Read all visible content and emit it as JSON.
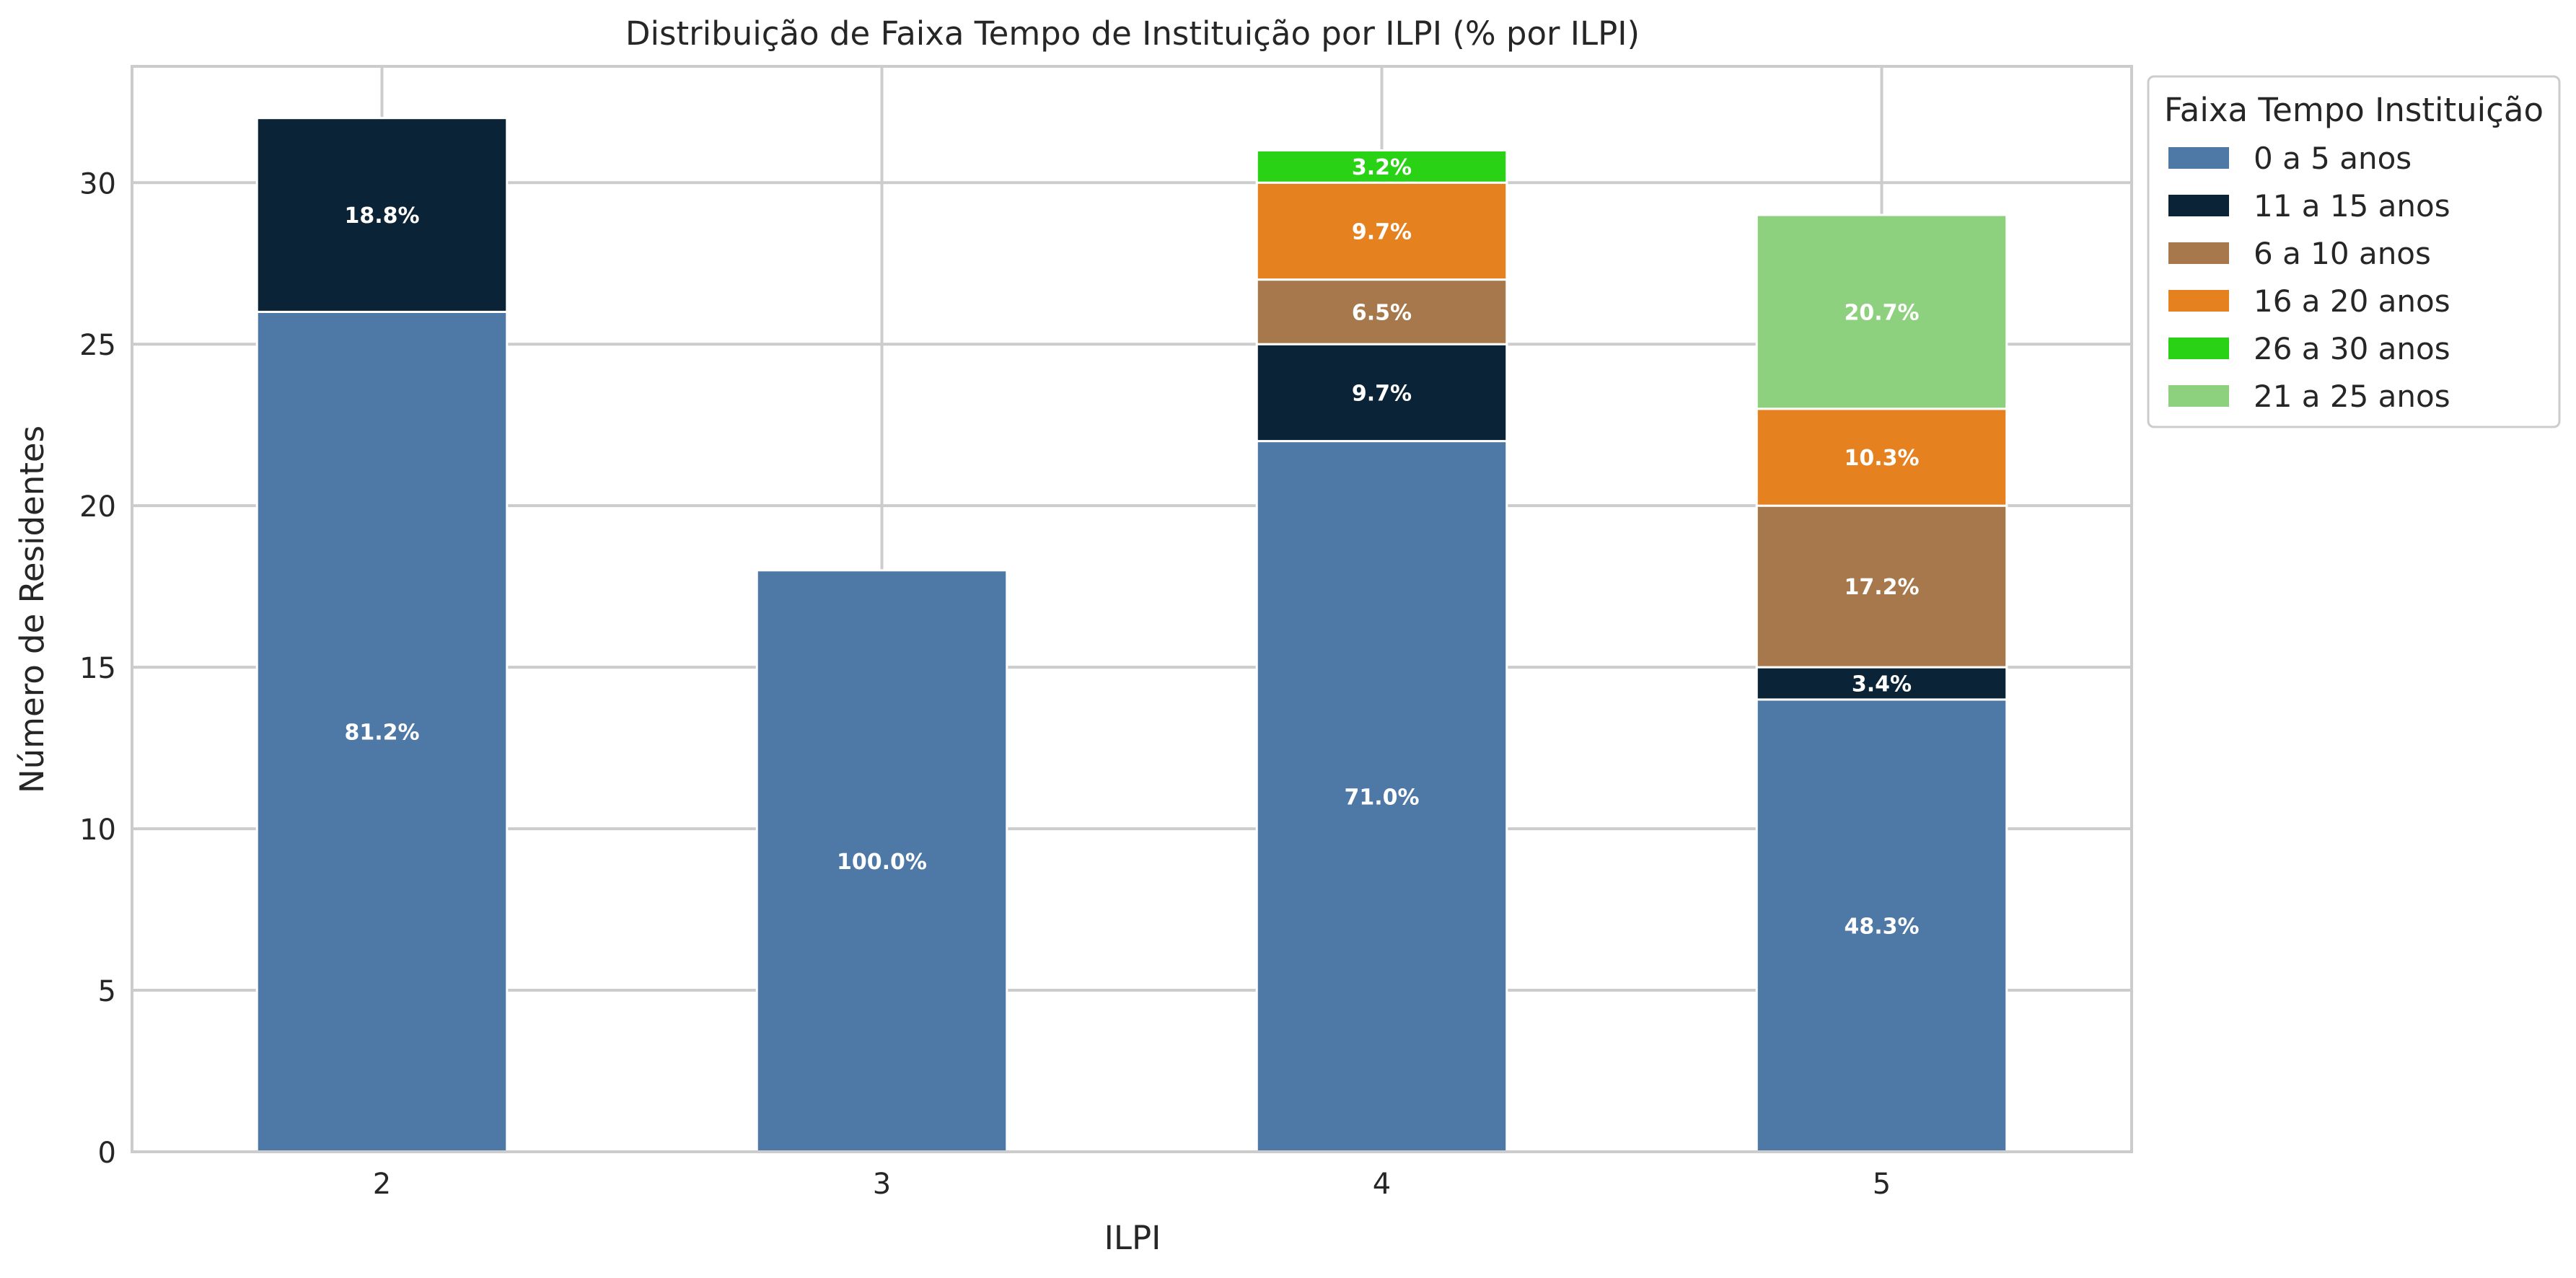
{
  "chart_data": {
    "type": "bar",
    "stacked": true,
    "title": "Distribuição de Faixa Tempo de Instituição por ILPI (% por ILPI)",
    "xlabel": "ILPI",
    "ylabel": "Número de Residentes",
    "categories": [
      "2",
      "3",
      "4",
      "5"
    ],
    "ylim": [
      0,
      33.6
    ],
    "yticks": [
      0,
      5,
      10,
      15,
      20,
      25,
      30
    ],
    "grid": true,
    "legend": {
      "title": "Faixa Tempo Instituição",
      "placement": "outside-top-right"
    },
    "series": [
      {
        "name": "0 a 5 anos",
        "color": "#4e79a7",
        "values": [
          26,
          18,
          22,
          14
        ],
        "labels": [
          "81.2%",
          "100.0%",
          "71.0%",
          "48.3%"
        ]
      },
      {
        "name": "11 a 15 anos",
        "color": "#0b2336",
        "values": [
          6,
          0,
          3,
          1
        ],
        "labels": [
          "18.8%",
          "",
          "9.7%",
          "3.4%"
        ]
      },
      {
        "name": "6 a 10 anos",
        "color": "#a7784b",
        "values": [
          0,
          0,
          2,
          5
        ],
        "labels": [
          "",
          "",
          "6.5%",
          "17.2%"
        ]
      },
      {
        "name": "16 a 20 anos",
        "color": "#e6811f",
        "values": [
          0,
          0,
          3,
          3
        ],
        "labels": [
          "",
          "",
          "9.7%",
          "10.3%"
        ]
      },
      {
        "name": "26 a 30 anos",
        "color": "#29d215",
        "values": [
          0,
          0,
          1,
          0
        ],
        "labels": [
          "",
          "",
          "3.2%",
          ""
        ]
      },
      {
        "name": "21 a 25 anos",
        "color": "#8dd17e",
        "values": [
          0,
          0,
          0,
          6
        ],
        "labels": [
          "",
          "",
          "",
          "20.7%"
        ]
      }
    ]
  }
}
